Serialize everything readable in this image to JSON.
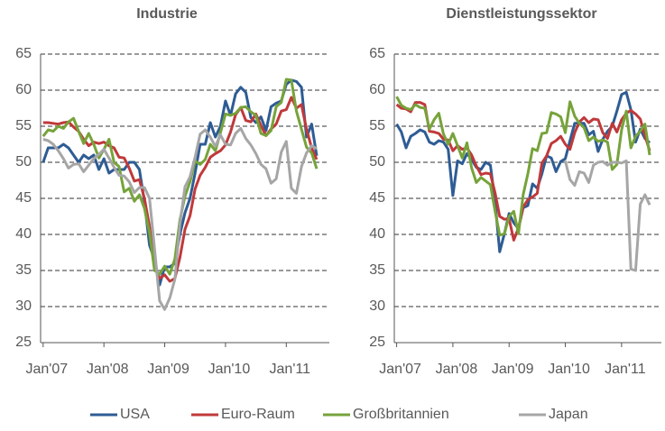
{
  "chart_data": [
    {
      "type": "line",
      "title": "Industrie",
      "categories": [
        "Jan'07",
        null,
        null,
        null,
        null,
        null,
        null,
        null,
        null,
        null,
        null,
        null,
        "Jan'08",
        null,
        null,
        null,
        null,
        null,
        null,
        null,
        null,
        null,
        null,
        null,
        "Jan'09",
        null,
        null,
        null,
        null,
        null,
        null,
        null,
        null,
        null,
        null,
        null,
        "Jan'10",
        null,
        null,
        null,
        null,
        null,
        null,
        null,
        null,
        null,
        null,
        null,
        "Jan'11",
        null,
        null,
        null,
        null,
        null,
        null
      ],
      "ylim": [
        25,
        65
      ],
      "yticks": [
        25,
        30,
        35,
        40,
        45,
        50,
        55,
        60,
        65
      ],
      "grid": true,
      "series": [
        {
          "name": "USA",
          "color": "#2e5c94",
          "values": [
            50,
            52,
            52,
            52,
            52.5,
            52,
            51,
            50,
            51,
            50.5,
            51,
            49,
            50.5,
            48.5,
            49,
            49,
            49,
            50,
            50,
            49,
            44.5,
            38.5,
            36.5,
            33,
            35.5,
            35.5,
            36,
            40,
            43,
            45,
            48.5,
            52.5,
            52.5,
            55.5,
            53.5,
            55,
            58.5,
            56.5,
            59.5,
            60.4,
            59.7,
            56.2,
            55.5,
            56.3,
            54.4,
            57.7,
            58.2,
            58.5,
            60.8,
            61.4,
            61.2,
            60.4,
            53.5,
            55.3,
            50.9
          ]
        },
        {
          "name": "Euro-Raum",
          "color": "#c0393b",
          "values": [
            55.5,
            55.5,
            55.4,
            55.3,
            55.5,
            55.6,
            54.9,
            54.3,
            53.2,
            52.3,
            52.8,
            52.6,
            52.8,
            52.3,
            52,
            50.7,
            50.6,
            49.2,
            47.4,
            47.6,
            45,
            41.1,
            35.6,
            33.9,
            34.4,
            33.5,
            33.9,
            36.8,
            40.7,
            42.6,
            46.3,
            48.2,
            49.3,
            50.7,
            51.2,
            51.6,
            52.4,
            54.2,
            56.6,
            57.6,
            55.8,
            55.6,
            56.7,
            55.1,
            53.7,
            54.6,
            55.3,
            57.1,
            57.3,
            59,
            57.5,
            58,
            54.6,
            52,
            50.4
          ]
        },
        {
          "name": "Großbritannien",
          "color": "#76a33a",
          "values": [
            53.6,
            54.5,
            54.3,
            55,
            54.7,
            55.6,
            56.1,
            54.3,
            52.6,
            54,
            52.5,
            50.6,
            51.8,
            53.2,
            50,
            49.4,
            45.9,
            46.4,
            44.6,
            45.5,
            43.6,
            40.2,
            35,
            34.5,
            35.6,
            34.5,
            36.6,
            42,
            45.3,
            47.3,
            50.2,
            49.7,
            50.4,
            52.5,
            51.6,
            54.1,
            56.7,
            56.5,
            56.8,
            57.6,
            57.7,
            57,
            56.5,
            54,
            53.7,
            54.4,
            57.7,
            58.3,
            61.5,
            61.4,
            57.1,
            54.6,
            52.1,
            51.3,
            49.1
          ]
        },
        {
          "name": "Japan",
          "color": "#a6a6a6",
          "values": [
            53.2,
            53,
            52.5,
            51.6,
            50.5,
            49.2,
            49.7,
            49.8,
            48.7,
            49.6,
            50.5,
            51.1,
            51.8,
            50.6,
            49.3,
            48.2,
            48.1,
            47.3,
            45.8,
            46.5,
            46.5,
            45,
            38,
            30.8,
            29.6,
            31.2,
            33.8,
            41.4,
            46.6,
            48,
            50.7,
            53.9,
            54.5,
            53.5,
            52.2,
            53.8,
            52.5,
            52.4,
            54,
            54.7,
            53.3,
            52.4,
            51.2,
            49.7,
            49.1,
            47.1,
            47.7,
            51.4,
            52.9,
            46.4,
            45.7,
            49.4,
            51.3,
            52.3,
            51.9
          ]
        }
      ]
    },
    {
      "type": "line",
      "title": "Dienstleistungssektor",
      "categories": [
        "Jan'07",
        null,
        null,
        null,
        null,
        null,
        null,
        null,
        null,
        null,
        null,
        null,
        "Jan'08",
        null,
        null,
        null,
        null,
        null,
        null,
        null,
        null,
        null,
        null,
        null,
        "Jan'09",
        null,
        null,
        null,
        null,
        null,
        null,
        null,
        null,
        null,
        null,
        null,
        "Jan'10",
        null,
        null,
        null,
        null,
        null,
        null,
        null,
        null,
        null,
        null,
        null,
        "Jan'11",
        null,
        null,
        null,
        null,
        null,
        null
      ],
      "ylim": [
        25,
        65
      ],
      "yticks": [
        25,
        30,
        35,
        40,
        45,
        50,
        55,
        60,
        65
      ],
      "grid": true,
      "series": [
        {
          "color": "#2e5c94",
          "values": [
            55.3,
            54.2,
            52,
            53.6,
            54,
            54.5,
            54.2,
            52.8,
            52.5,
            53,
            52.8,
            51.8,
            45.4,
            50.2,
            49.8,
            51.2,
            50.4,
            49.3,
            49,
            50,
            49.6,
            44.6,
            37.6,
            40.1,
            42.9,
            41.6,
            40.8,
            43.7,
            44,
            47,
            46.4,
            48.4,
            50.9,
            50.6,
            48.7,
            50.1,
            50.5,
            53,
            55.4,
            55.4,
            55.4,
            53.8,
            54.3,
            51.5,
            53.2,
            54.3,
            55,
            57.1,
            59.4,
            59.7,
            57.3,
            52.8,
            54.6,
            53.3,
            52.7
          ]
        },
        {
          "color": "#c0393b",
          "values": [
            58,
            57.5,
            57.4,
            57,
            58.3,
            58.3,
            58,
            54.3,
            54.2,
            54,
            53.2,
            53.1,
            51.6,
            52.3,
            51.8,
            52,
            51,
            49.5,
            48.3,
            48.5,
            48.4,
            45.8,
            42.5,
            42.1,
            42.2,
            39.2,
            40.9,
            43.8,
            44.8,
            45.2,
            45.7,
            49.9,
            50.9,
            52.6,
            53,
            53.6,
            52.5,
            51.8,
            54.1,
            55.6,
            56.2,
            55.5,
            56,
            55.9,
            54.1,
            53.3,
            55.4,
            54.2,
            55.9,
            56.8,
            57.2,
            56.7,
            56,
            53.7,
            51.6
          ]
        },
        {
          "color": "#76a33a",
          "values": [
            59.1,
            57.9,
            57.5,
            57.3,
            58,
            57.6,
            57.5,
            54.6,
            55.9,
            56.8,
            53.9,
            52.5,
            54,
            52.3,
            50.6,
            52.7,
            49.2,
            47.2,
            47.9,
            47.4,
            46.9,
            43.3,
            39.9,
            40.1,
            42.5,
            43.2,
            40.1,
            45.5,
            48.4,
            51.9,
            51.6,
            54,
            54.1,
            56.9,
            56.7,
            56.3,
            54.1,
            58.4,
            56.4,
            55.4,
            54.8,
            53,
            53.5,
            52.9,
            53.1,
            52.8,
            49,
            49.7,
            54.5,
            57.1,
            52,
            53.6,
            54.3,
            55.3,
            51
          ]
        },
        {
          "color": "#a6a6a6",
          "values": [
            null,
            null,
            null,
            null,
            null,
            null,
            null,
            null,
            null,
            null,
            null,
            null,
            null,
            null,
            null,
            null,
            null,
            null,
            null,
            null,
            null,
            null,
            null,
            null,
            null,
            null,
            null,
            null,
            null,
            null,
            null,
            null,
            null,
            null,
            null,
            null,
            50.2,
            47.6,
            46.8,
            48.7,
            48.5,
            47.2,
            49.6,
            50,
            50.1,
            49.6,
            50,
            50,
            49.9,
            50.2,
            35.2,
            35,
            44.2,
            45.5,
            44.1
          ]
        }
      ]
    }
  ]
}
